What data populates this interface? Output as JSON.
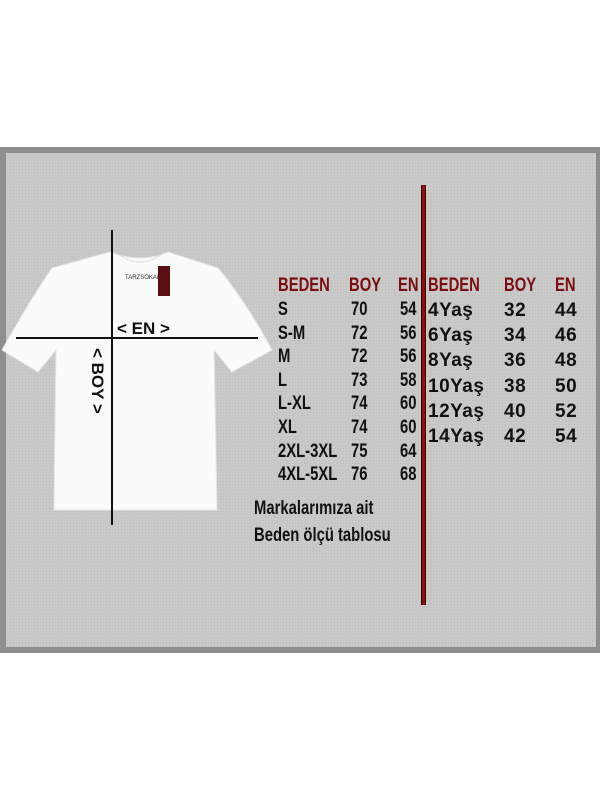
{
  "shirt": {
    "label_text": "TARZSOKAK",
    "width_label": "< EN >",
    "length_label": "< BOY >"
  },
  "adult_table": {
    "headers": [
      "BEDEN",
      "BOY",
      "EN"
    ],
    "rows": [
      [
        "S",
        "70",
        "54"
      ],
      [
        "S-M",
        "72",
        "56"
      ],
      [
        "M",
        "72",
        "56"
      ],
      [
        "L",
        "73",
        "58"
      ],
      [
        "L-XL",
        "74",
        "60"
      ],
      [
        "XL",
        "74",
        "60"
      ],
      [
        "2XL-3XL",
        "75",
        "64"
      ],
      [
        "4XL-5XL",
        "76",
        "68"
      ]
    ]
  },
  "kids_table": {
    "headers": [
      "BEDEN",
      "BOY",
      "EN"
    ],
    "rows": [
      [
        "4Yaş",
        "32",
        "44"
      ],
      [
        "6Yaş",
        "34",
        "46"
      ],
      [
        "8Yaş",
        "36",
        "48"
      ],
      [
        "10Yaş",
        "38",
        "50"
      ],
      [
        "12Yaş",
        "40",
        "52"
      ],
      [
        "14Yaş",
        "42",
        "54"
      ]
    ]
  },
  "footer": {
    "line1": "Markalarımıza ait",
    "line2": "Beden ölçü tablosu"
  },
  "colors": {
    "header": "#7a0d0d",
    "divider": "#8b1010",
    "panel": "#c9c9c9"
  }
}
